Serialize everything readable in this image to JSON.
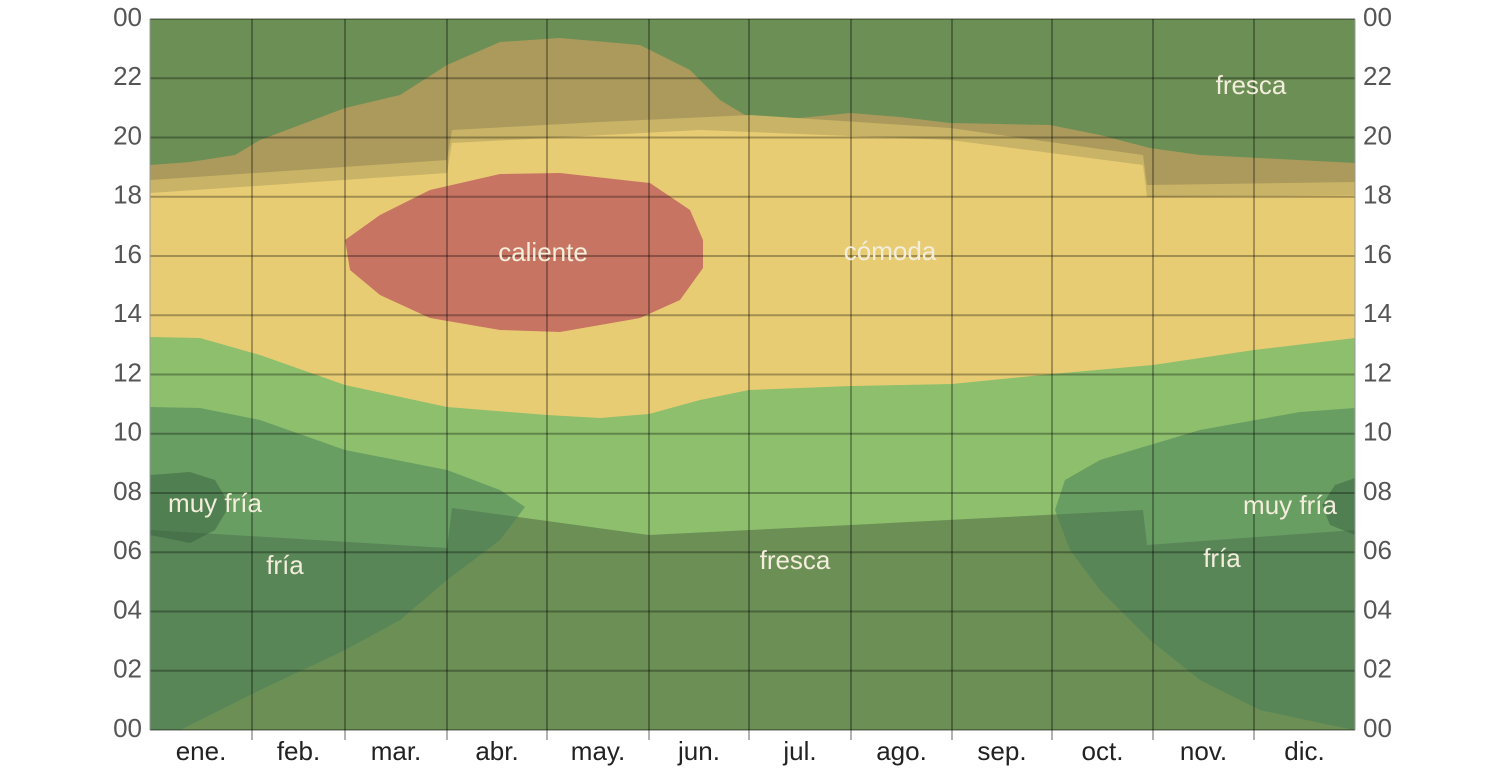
{
  "chart_data": {
    "type": "area",
    "categories": [
      "ene.",
      "feb.",
      "mar.",
      "abr.",
      "may.",
      "jun.",
      "jul.",
      "ago.",
      "sep.",
      "oct.",
      "nov.",
      "dic."
    ],
    "ylim": [
      0,
      24
    ],
    "yticks": [
      {
        "value": 0,
        "label": "00"
      },
      {
        "value": 2,
        "label": "02"
      },
      {
        "value": 4,
        "label": "04"
      },
      {
        "value": 6,
        "label": "06"
      },
      {
        "value": 8,
        "label": "08"
      },
      10,
      12,
      14,
      16,
      18,
      20,
      22,
      {
        "value": 24,
        "label": "00"
      }
    ],
    "grid": true,
    "region_labels": [
      "fresca",
      "cómoda",
      "caliente",
      "muy fría",
      "fría",
      "fresca",
      "muy fría",
      "fría"
    ]
  }
}
